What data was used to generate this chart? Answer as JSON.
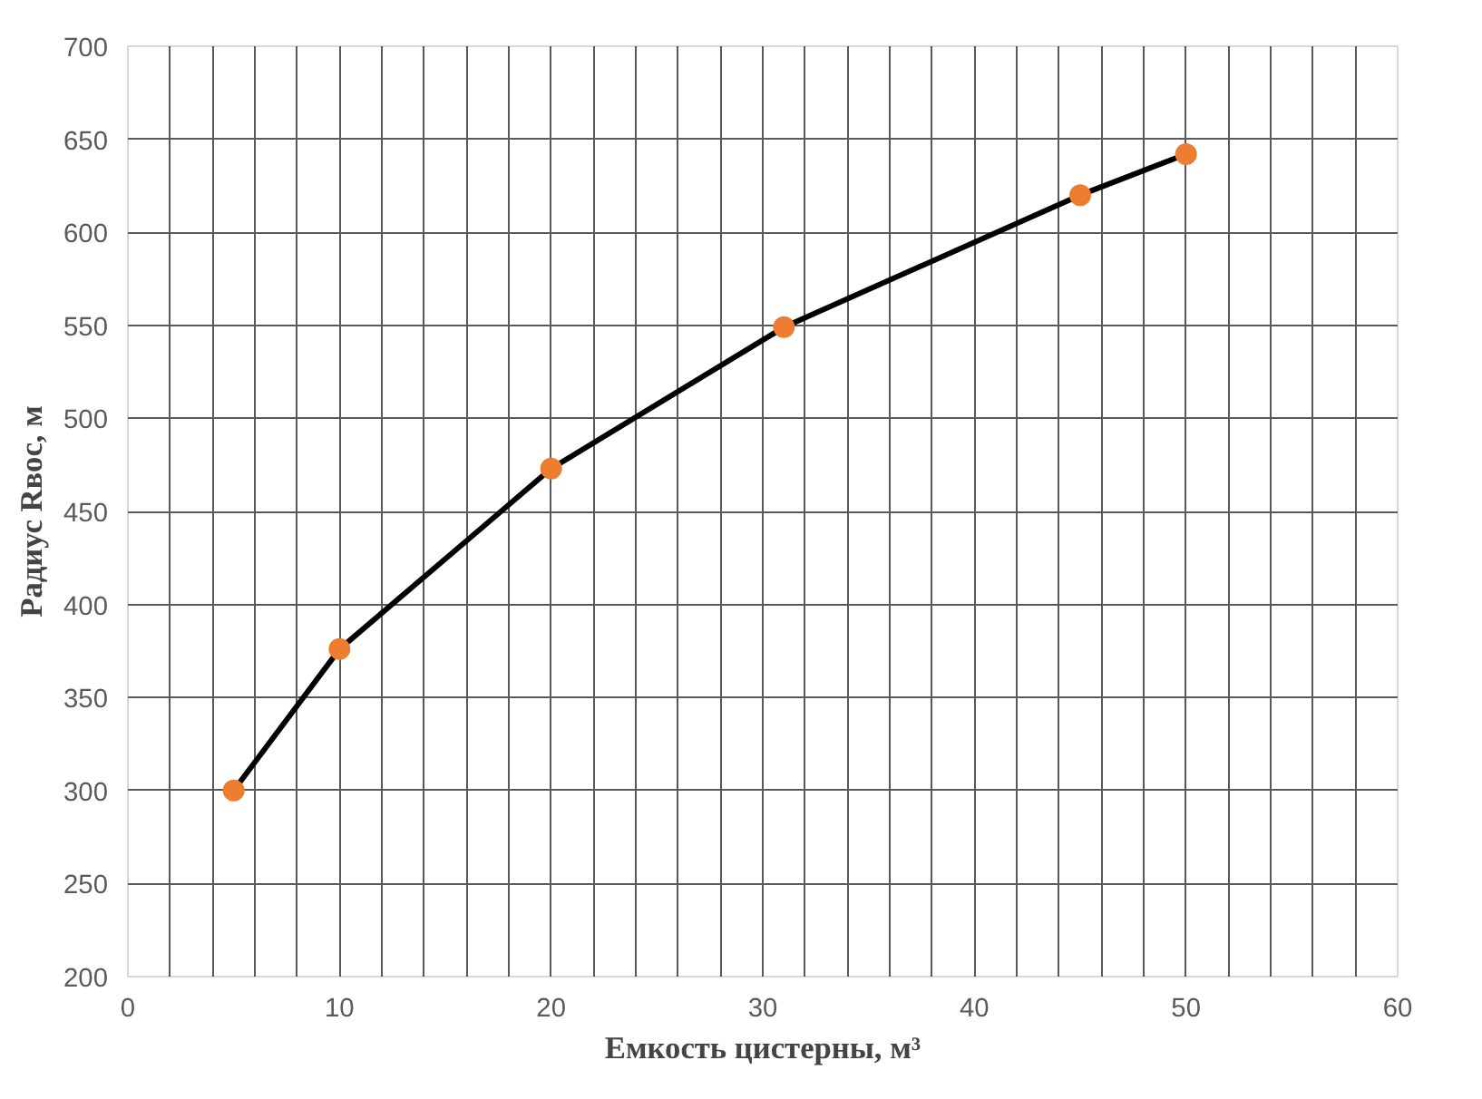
{
  "chart_data": {
    "type": "line",
    "xlabel": "Емкость цистерны, м³",
    "ylabel": "Радиус Rвос, м",
    "x": [
      5,
      10,
      20,
      31,
      45,
      50
    ],
    "series": [
      {
        "color": "#000000",
        "marker": "none",
        "line_style": "solid",
        "values": [
          300,
          376,
          473,
          549,
          620,
          642
        ]
      },
      {
        "type": "scatter",
        "color": "#ed7d31",
        "marker": "circle",
        "values": [
          300,
          376,
          473,
          549,
          620,
          642
        ]
      }
    ],
    "xlim": [
      0,
      60
    ],
    "ylim": [
      200,
      700
    ],
    "xticks": [
      0,
      {
        "value": 2,
        "label": null
      },
      {
        "value": 4,
        "label": null
      },
      {
        "value": 6,
        "label": null
      },
      {
        "value": 8,
        "label": null
      },
      10,
      {
        "value": 12,
        "label": null
      },
      {
        "value": 14,
        "label": null
      },
      {
        "value": 16,
        "label": null
      },
      {
        "value": 18,
        "label": null
      },
      20,
      {
        "value": 22,
        "label": null
      },
      {
        "value": 24,
        "label": null
      },
      {
        "value": 26,
        "label": null
      },
      {
        "value": 28,
        "label": null
      },
      30,
      {
        "value": 32,
        "label": null
      },
      {
        "value": 34,
        "label": null
      },
      {
        "value": 36,
        "label": null
      },
      {
        "value": 38,
        "label": null
      },
      40,
      {
        "value": 42,
        "label": null
      },
      {
        "value": 44,
        "label": null
      },
      {
        "value": 46,
        "label": null
      },
      {
        "value": 48,
        "label": null
      },
      50,
      {
        "value": 52,
        "label": null
      },
      {
        "value": 54,
        "label": null
      },
      {
        "value": 56,
        "label": null
      },
      {
        "value": 58,
        "label": null
      },
      60
    ],
    "yticks": [
      200,
      250,
      300,
      350,
      400,
      450,
      500,
      550,
      600,
      650,
      700
    ],
    "grid": true
  }
}
